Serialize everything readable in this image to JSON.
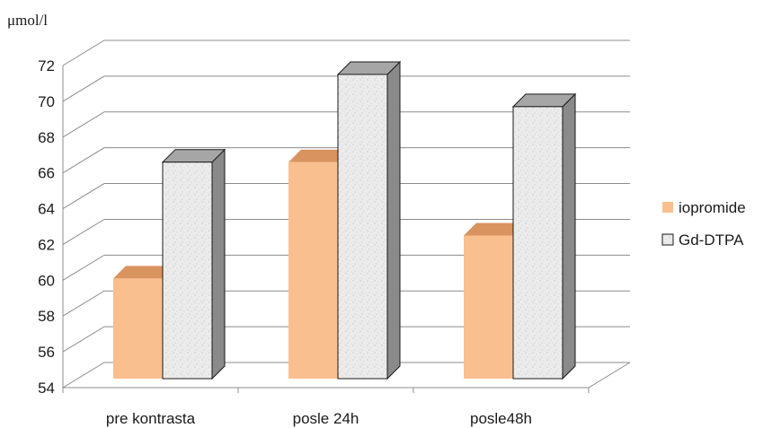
{
  "chart_data": {
    "type": "bar",
    "ylabel": "μmol/l",
    "categories": [
      "pre kontrasta",
      "posle 24h",
      "posle48h"
    ],
    "ylim": [
      54,
      72
    ],
    "yticks": [
      54,
      56,
      58,
      60,
      62,
      64,
      66,
      68,
      70,
      72
    ],
    "grid": true,
    "legend_position": "right",
    "series": [
      {
        "name": "iopromide",
        "values": [
          60.1,
          66.6,
          62.5
        ],
        "color": "#f9bf8f"
      },
      {
        "name": "Gd-DTPA",
        "values": [
          66.6,
          71.5,
          69.7
        ],
        "color": "#e6e6e6"
      }
    ]
  }
}
